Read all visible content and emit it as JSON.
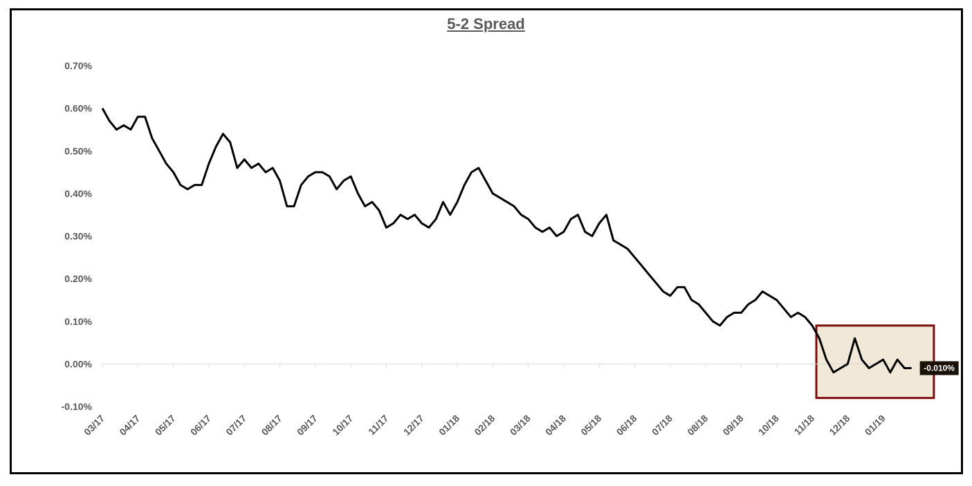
{
  "chart_data": {
    "type": "line",
    "title": "5-2 Spread",
    "xlabel": "",
    "ylabel": "",
    "ylim": [
      -0.1,
      0.7
    ],
    "y_ticks": [
      "0.70%",
      "0.60%",
      "0.50%",
      "0.40%",
      "0.30%",
      "0.20%",
      "0.10%",
      "0.00%",
      "-0.10%"
    ],
    "x_ticks": [
      "03/17",
      "04/17",
      "05/17",
      "06/17",
      "07/17",
      "08/17",
      "09/17",
      "10/17",
      "11/17",
      "12/17",
      "01/18",
      "02/18",
      "03/18",
      "04/18",
      "05/18",
      "06/18",
      "07/18",
      "08/18",
      "09/18",
      "10/18",
      "11/18",
      "12/18",
      "01/19"
    ],
    "grid": false,
    "series": [
      {
        "name": "",
        "color": "#000000",
        "x": [
          "03/17",
          "03/17",
          "03/17",
          "03/17",
          "03/17",
          "04/17",
          "04/17",
          "04/17",
          "04/17",
          "04/17",
          "05/17",
          "05/17",
          "05/17",
          "05/17",
          "05/17",
          "06/17",
          "06/17",
          "06/17",
          "06/17",
          "06/17",
          "07/17",
          "07/17",
          "07/17",
          "07/17",
          "07/17",
          "08/17",
          "08/17",
          "08/17",
          "08/17",
          "08/17",
          "09/17",
          "09/17",
          "09/17",
          "09/17",
          "09/17",
          "10/17",
          "10/17",
          "10/17",
          "10/17",
          "10/17",
          "11/17",
          "11/17",
          "11/17",
          "11/17",
          "11/17",
          "12/17",
          "12/17",
          "12/17",
          "12/17",
          "12/17",
          "01/18",
          "01/18",
          "01/18",
          "01/18",
          "01/18",
          "02/18",
          "02/18",
          "02/18",
          "02/18",
          "02/18",
          "03/18",
          "03/18",
          "03/18",
          "03/18",
          "03/18",
          "04/18",
          "04/18",
          "04/18",
          "04/18",
          "04/18",
          "05/18",
          "05/18",
          "05/18",
          "05/18",
          "05/18",
          "06/18",
          "06/18",
          "06/18",
          "06/18",
          "06/18",
          "07/18",
          "07/18",
          "07/18",
          "07/18",
          "07/18",
          "08/18",
          "08/18",
          "08/18",
          "08/18",
          "08/18",
          "09/18",
          "09/18",
          "09/18",
          "09/18",
          "09/18",
          "10/18",
          "10/18",
          "10/18",
          "10/18",
          "10/18",
          "11/18",
          "11/18",
          "11/18",
          "11/18",
          "11/18",
          "12/18",
          "12/18",
          "12/18",
          "12/18",
          "12/18",
          "01/19",
          "01/19",
          "01/19",
          "01/19",
          "01/19"
        ],
        "values": [
          0.6,
          0.57,
          0.55,
          0.56,
          0.55,
          0.58,
          0.58,
          0.53,
          0.5,
          0.47,
          0.45,
          0.42,
          0.41,
          0.42,
          0.42,
          0.47,
          0.51,
          0.54,
          0.52,
          0.46,
          0.48,
          0.46,
          0.47,
          0.45,
          0.46,
          0.43,
          0.37,
          0.37,
          0.42,
          0.44,
          0.45,
          0.45,
          0.44,
          0.41,
          0.43,
          0.44,
          0.4,
          0.37,
          0.38,
          0.36,
          0.32,
          0.33,
          0.35,
          0.34,
          0.35,
          0.33,
          0.32,
          0.34,
          0.38,
          0.35,
          0.38,
          0.42,
          0.45,
          0.46,
          0.43,
          0.4,
          0.39,
          0.38,
          0.37,
          0.35,
          0.34,
          0.32,
          0.31,
          0.32,
          0.3,
          0.31,
          0.34,
          0.35,
          0.31,
          0.3,
          0.33,
          0.35,
          0.29,
          0.28,
          0.27,
          0.25,
          0.23,
          0.21,
          0.19,
          0.17,
          0.16,
          0.18,
          0.18,
          0.15,
          0.14,
          0.12,
          0.1,
          0.09,
          0.11,
          0.12,
          0.12,
          0.14,
          0.15,
          0.17,
          0.16,
          0.15,
          0.13,
          0.11,
          0.12,
          0.11,
          0.09,
          0.06,
          0.01,
          -0.02,
          -0.01,
          0.0,
          0.06,
          0.01,
          -0.01,
          0.0,
          0.01,
          -0.02,
          0.01,
          -0.01,
          -0.01
        ]
      }
    ],
    "last_value_label": "-0.010%",
    "highlight_color": "#7a0c0c",
    "highlight_fill": "#f1e8d8"
  }
}
